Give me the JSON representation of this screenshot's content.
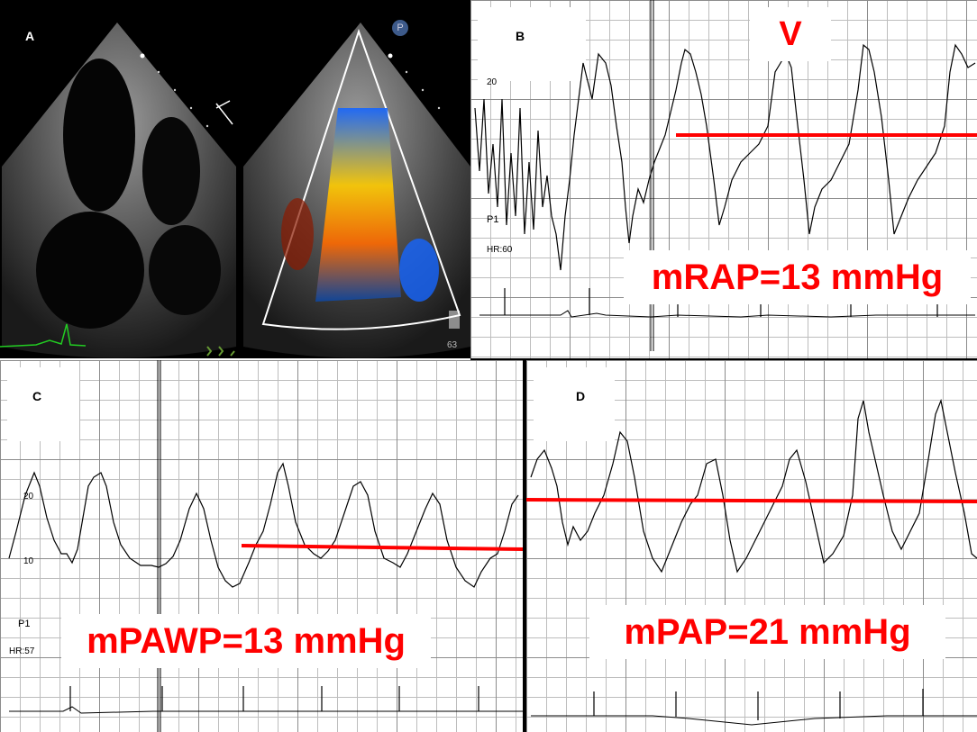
{
  "panels": {
    "a": {
      "letter": "A",
      "marker": "P",
      "depth_readout": "63"
    },
    "b": {
      "letter": "B",
      "scale_label": "20",
      "channel": "P1",
      "heart_rate": "HR:60",
      "wave_label": "V",
      "measurement": "mRAP=13 mmHg"
    },
    "c": {
      "letter": "C",
      "scale_high": "20",
      "scale_low": "10",
      "channel": "P1",
      "heart_rate": "HR:57",
      "measurement": "mPAWP=13 mmHg"
    },
    "d": {
      "letter": "D",
      "measurement": "mPAP=21 mmHg"
    }
  },
  "colors": {
    "measure_line": "#ff0000",
    "label_text": "#ff0000",
    "trace": "#000000",
    "ecg_trace_a": "#22cc22"
  }
}
